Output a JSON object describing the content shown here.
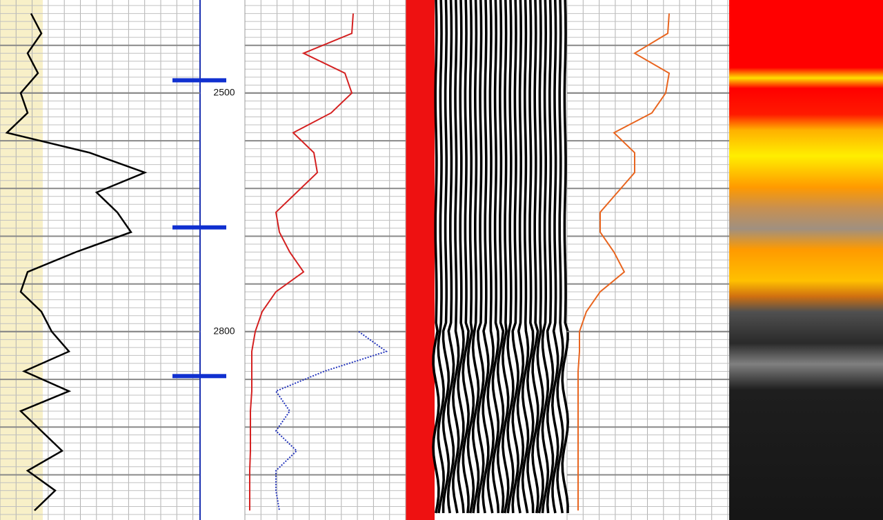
{
  "chart_data": {
    "type": "well-log",
    "ylim": [
      2383,
      3037
    ],
    "yticks": [
      2500,
      2800
    ],
    "depths": [
      2400,
      2425,
      2450,
      2475,
      2500,
      2525,
      2550,
      2575,
      2600,
      2625,
      2650,
      2675,
      2700,
      2725,
      2750,
      2775,
      2800,
      2825,
      2850,
      2875,
      2900,
      2925,
      2950,
      2975,
      3000,
      3025
    ],
    "markers": [
      2484,
      2669,
      2856
    ],
    "series": [
      {
        "color": "#000000",
        "track": 0,
        "xlim": [
          0,
          290
        ],
        "values": [
          45,
          60,
          40,
          55,
          30,
          40,
          10,
          130,
          210,
          140,
          170,
          190,
          110,
          40,
          30,
          60,
          75,
          100,
          35,
          100,
          30,
          60,
          90,
          40,
          80,
          50
        ]
      },
      {
        "color": "#d42020",
        "track": 1,
        "xlim": [
          0,
          233
        ],
        "values": [
          157,
          155,
          85,
          145,
          155,
          125,
          70,
          100,
          105,
          75,
          45,
          50,
          65,
          85,
          45,
          25,
          15,
          10,
          10,
          10,
          8,
          8,
          8,
          7,
          7,
          7
        ]
      },
      {
        "color": "#2233bb",
        "track": 1,
        "xlim": [
          0,
          233
        ],
        "values": [
          null,
          null,
          null,
          null,
          null,
          null,
          null,
          null,
          null,
          null,
          null,
          null,
          null,
          null,
          null,
          null,
          165,
          205,
          115,
          45,
          65,
          45,
          75,
          45,
          45,
          50
        ]
      },
      {
        "color": "#e8641e",
        "track": 3,
        "xlim": [
          0,
          235
        ],
        "values": [
          148,
          146,
          98,
          148,
          143,
          123,
          68,
          98,
          98,
          73,
          48,
          48,
          68,
          83,
          48,
          28,
          18,
          18,
          16,
          16,
          16,
          16,
          16,
          16,
          16,
          16
        ]
      }
    ]
  }
}
